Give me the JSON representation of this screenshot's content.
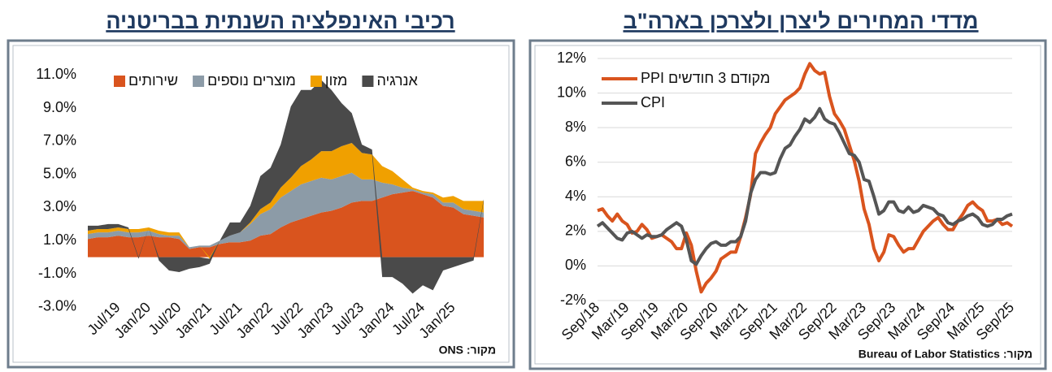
{
  "chart_data": [
    {
      "type": "area",
      "stacked": true,
      "title": "רכיבי האינפלציה השנתית בבריטניה",
      "source": "מקור: ONS",
      "legend": "top",
      "grid": false,
      "categories": [
        null,
        null,
        null,
        "Jul/19",
        null,
        null,
        "Jan/20",
        null,
        null,
        "Jul/20",
        null,
        null,
        "Jan/21",
        null,
        null,
        "Jul/21",
        null,
        null,
        "Jan/22",
        null,
        null,
        "Jul/22",
        null,
        null,
        "Jan/23",
        null,
        null,
        "Jul/23",
        null,
        null,
        "Jan/24",
        null,
        null,
        "Jul/24",
        null,
        null,
        "Jan/25",
        null,
        null,
        null
      ],
      "ylim": [
        -3.5,
        12
      ],
      "yticks": [
        {
          "value": -3,
          "label": "-3.0%"
        },
        {
          "value": -1,
          "label": "-1.0%"
        },
        {
          "value": 1,
          "label": "1.0%"
        },
        {
          "value": 3,
          "label": "3.0%"
        },
        {
          "value": 5,
          "label": "5.0%"
        },
        {
          "value": 7,
          "label": "7.0%"
        },
        {
          "value": 9,
          "label": "9.0%"
        },
        {
          "value": 11,
          "label": "11.0%"
        }
      ],
      "series": [
        {
          "name": "שירותים",
          "color": "#d9541e",
          "values": [
            1.1,
            1.2,
            1.2,
            1.3,
            1.2,
            1.2,
            1.3,
            1.2,
            1.2,
            1.1,
            0.5,
            0.6,
            0.6,
            0.8,
            0.9,
            0.9,
            1.0,
            1.3,
            1.4,
            1.8,
            2.1,
            2.3,
            2.5,
            2.7,
            2.8,
            3.0,
            3.3,
            3.4,
            3.4,
            3.6,
            3.8,
            3.9,
            4.0,
            3.8,
            3.6,
            3.1,
            3.0,
            2.6,
            2.5,
            2.4
          ]
        },
        {
          "name": "מוצרים נוספים",
          "color": "#8c9ba7",
          "values": [
            0.3,
            0.3,
            0.3,
            0.3,
            0.3,
            0.3,
            0.3,
            0.2,
            0.1,
            0.2,
            0.1,
            0.1,
            0.1,
            0.2,
            0.4,
            0.6,
            1.0,
            1.3,
            1.5,
            1.8,
            1.9,
            2.1,
            2.1,
            2.1,
            1.9,
            1.9,
            1.8,
            1.3,
            1.3,
            0.9,
            0.6,
            0.3,
            0.1,
            0.1,
            0.2,
            0.2,
            0.3,
            0.3,
            0.3,
            0.3
          ]
        },
        {
          "name": "מזון",
          "color": "#f0a000",
          "values": [
            0.2,
            0.2,
            0.2,
            0.2,
            0.2,
            0.2,
            0.2,
            0.2,
            0.2,
            0.2,
            0.0,
            0.0,
            -0.1,
            0.0,
            0.0,
            0.0,
            0.1,
            0.3,
            0.4,
            0.6,
            0.8,
            1.1,
            1.3,
            1.6,
            1.7,
            1.8,
            1.8,
            1.6,
            1.5,
            1.0,
            0.8,
            0.5,
            0.1,
            0.1,
            0.1,
            0.3,
            0.4,
            0.5,
            0.6,
            0.7
          ]
        },
        {
          "name": "אנרגיה",
          "color": "#4a4a4a",
          "values": [
            0.3,
            0.2,
            0.3,
            0.2,
            0.1,
            -0.1,
            0.0,
            -0.2,
            -0.8,
            -0.9,
            -0.7,
            -0.6,
            -0.3,
            0.0,
            0.8,
            0.6,
            1.0,
            2.0,
            2.1,
            2.6,
            4.3,
            4.6,
            4.2,
            4.3,
            3.7,
            2.6,
            1.8,
            0.5,
            0.3,
            -1.2,
            -1.2,
            -1.6,
            -2.2,
            -1.7,
            -2.0,
            -0.8,
            -0.6,
            -0.4,
            -0.2,
            0.1
          ]
        }
      ]
    },
    {
      "type": "line",
      "title": "מדדי המחירים ליצרן ולצרכן בארה\"ב",
      "source": "מקור: Bureau of Labor Statistics",
      "legend": "upper left",
      "grid": true,
      "categories": [
        "Sep/18",
        null,
        null,
        null,
        null,
        null,
        "Mar/19",
        null,
        null,
        null,
        null,
        null,
        "Sep/19",
        null,
        null,
        null,
        null,
        null,
        "Mar/20",
        null,
        null,
        null,
        null,
        null,
        "Sep/20",
        null,
        null,
        null,
        null,
        null,
        "Mar/21",
        null,
        null,
        null,
        null,
        null,
        "Sep/21",
        null,
        null,
        null,
        null,
        null,
        "Mar/22",
        null,
        null,
        null,
        null,
        null,
        "Sep/22",
        null,
        null,
        null,
        null,
        null,
        "Mar/23",
        null,
        null,
        null,
        null,
        null,
        "Sep/23",
        null,
        null,
        null,
        null,
        null,
        "Mar/24",
        null,
        null,
        null,
        null,
        null,
        "Sep/24",
        null,
        null,
        null,
        null,
        null,
        "Mar/25",
        null,
        null,
        null,
        null,
        null,
        "Sep/25"
      ],
      "ylim": [
        -2,
        12
      ],
      "yticks": [
        {
          "value": -2,
          "label": "-2%"
        },
        {
          "value": 0,
          "label": "0%"
        },
        {
          "value": 2,
          "label": "2%"
        },
        {
          "value": 4,
          "label": "4%"
        },
        {
          "value": 6,
          "label": "6%"
        },
        {
          "value": 8,
          "label": "8%"
        },
        {
          "value": 10,
          "label": "10%"
        },
        {
          "value": 12,
          "label": "12%"
        }
      ],
      "series": [
        {
          "name": "מקודם 3 חודשים PPI",
          "color": "#d9541e",
          "values": [
            3.2,
            3.3,
            2.9,
            2.6,
            3.0,
            2.6,
            2.4,
            1.9,
            2.0,
            2.4,
            2.1,
            1.6,
            1.7,
            1.8,
            1.6,
            1.4,
            1.0,
            1.0,
            1.9,
            1.2,
            -0.3,
            -1.5,
            -1.0,
            -0.7,
            -0.3,
            0.4,
            0.6,
            0.8,
            0.8,
            1.7,
            2.8,
            4.1,
            6.5,
            7.1,
            7.6,
            8.0,
            8.8,
            9.2,
            9.6,
            9.8,
            10.0,
            10.3,
            11.1,
            11.7,
            11.3,
            11.1,
            11.2,
            9.8,
            8.8,
            8.4,
            7.9,
            7.0,
            6.1,
            4.9,
            3.3,
            2.4,
            1.0,
            0.3,
            0.8,
            1.8,
            1.7,
            1.2,
            0.8,
            1.0,
            1.0,
            1.5,
            2.0,
            2.3,
            2.6,
            2.8,
            2.4,
            2.1,
            2.1,
            2.6,
            3.0,
            3.5,
            3.7,
            3.4,
            3.2,
            2.6,
            2.6,
            2.7,
            2.4,
            2.5,
            2.3
          ]
        },
        {
          "name": "CPI",
          "color": "#555555",
          "values": [
            2.3,
            2.5,
            2.2,
            1.9,
            1.6,
            1.5,
            1.9,
            2.0,
            1.8,
            1.6,
            1.8,
            1.7,
            1.7,
            1.8,
            2.1,
            2.3,
            2.5,
            2.3,
            1.5,
            0.3,
            0.1,
            0.6,
            1.0,
            1.3,
            1.4,
            1.2,
            1.2,
            1.4,
            1.4,
            1.7,
            2.6,
            4.2,
            5.0,
            5.4,
            5.4,
            5.3,
            5.4,
            6.2,
            6.8,
            7.0,
            7.5,
            7.9,
            8.5,
            8.3,
            8.6,
            9.1,
            8.5,
            8.3,
            8.2,
            7.7,
            7.1,
            6.5,
            6.4,
            6.0,
            5.0,
            4.9,
            4.0,
            3.0,
            3.2,
            3.7,
            3.7,
            3.2,
            3.1,
            3.4,
            3.1,
            3.2,
            3.5,
            3.4,
            3.3,
            3.0,
            2.9,
            2.5,
            2.4,
            2.6,
            2.7,
            2.9,
            3.0,
            2.8,
            2.4,
            2.3,
            2.4,
            2.7,
            2.7,
            2.9,
            3.0
          ]
        }
      ]
    }
  ]
}
